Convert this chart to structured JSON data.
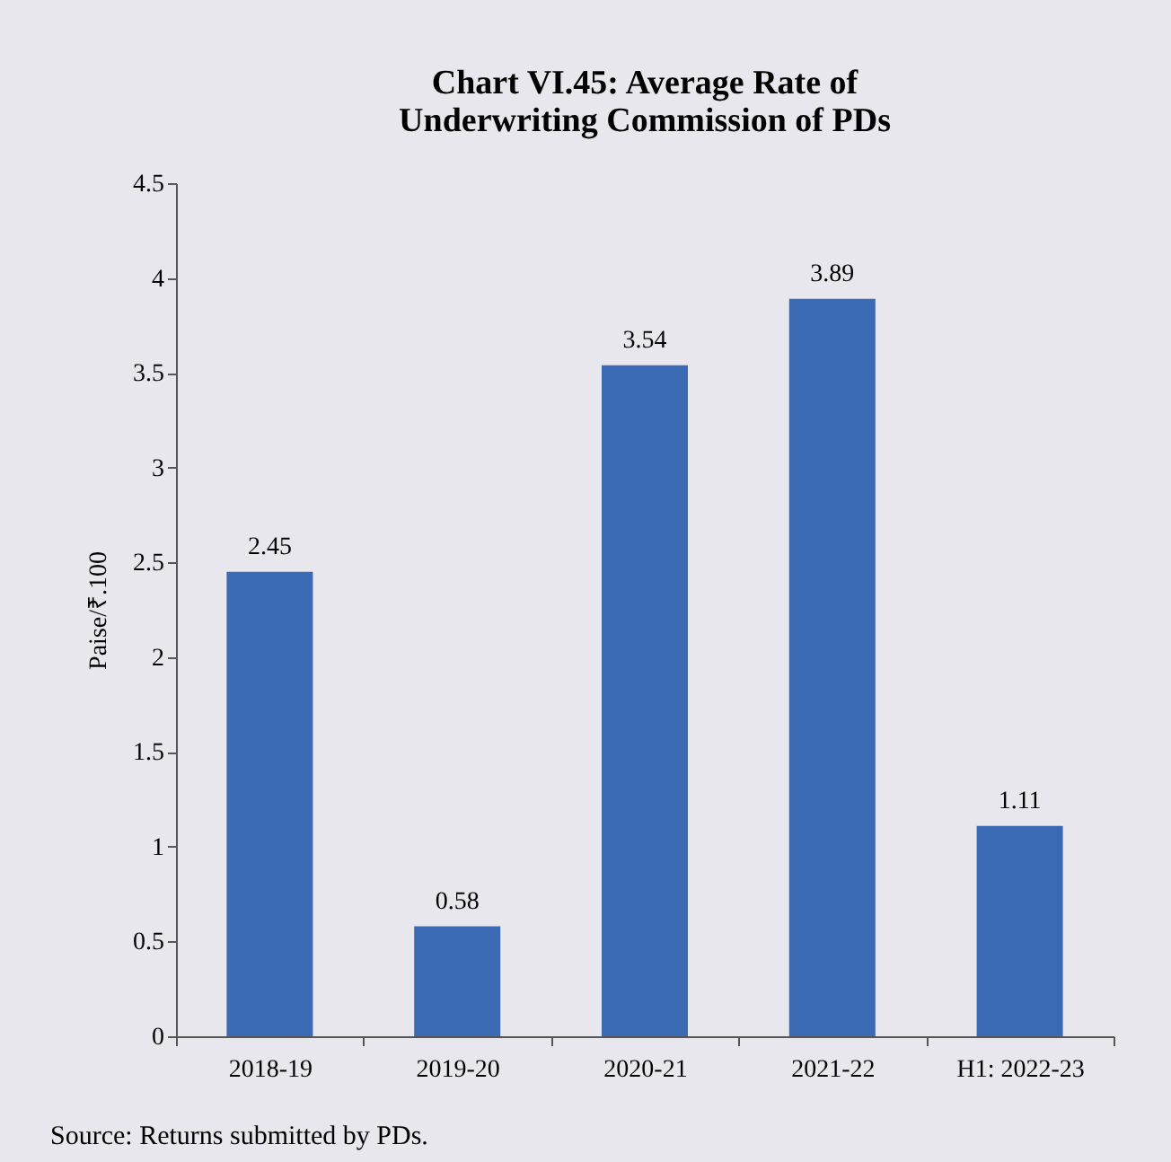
{
  "chart_data": {
    "type": "bar",
    "title": "Chart VI.45: Average Rate of Underwriting Commission of PDs",
    "ylabel": "Paise/₹.100",
    "categories": [
      "2018-19",
      "2019-20",
      "2020-21",
      "2021-22",
      "H1: 2022-23"
    ],
    "values": [
      2.45,
      0.58,
      3.54,
      3.89,
      1.11
    ],
    "color": "#3a6ab4",
    "ylim": [
      0,
      4.5
    ],
    "yticks": [
      0,
      0.5,
      1,
      1.5,
      2,
      2.5,
      3,
      3.5,
      4,
      4.5
    ],
    "grid": false,
    "data_labels": true,
    "annotations": [
      "Source: Returns submitted by PDs."
    ]
  }
}
